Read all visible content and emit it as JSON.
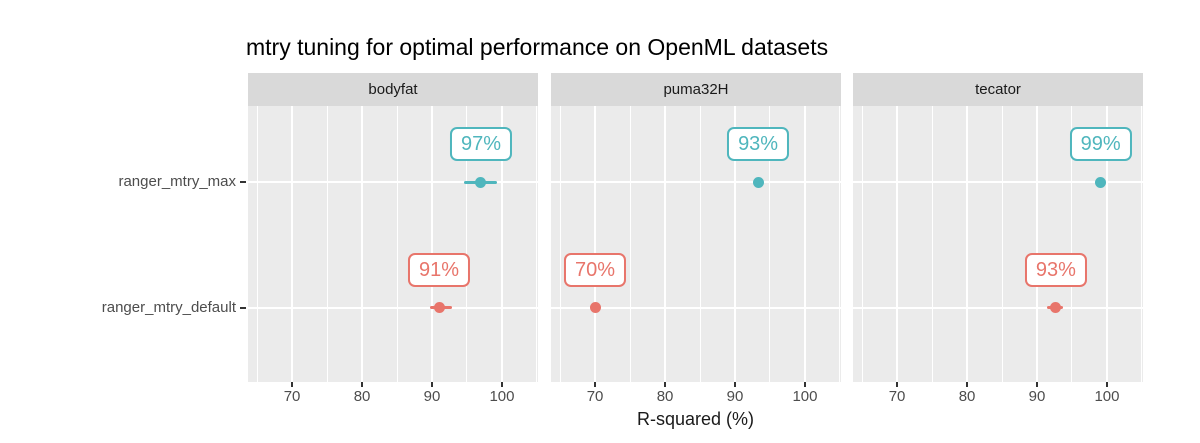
{
  "chart_data": {
    "type": "scatter",
    "title": "mtry tuning for optimal performance on OpenML datasets",
    "xlabel": "R-squared (%)",
    "ylabel": "",
    "x_ticks": [
      70,
      80,
      90,
      100
    ],
    "x_minor_ticks": [
      65,
      75,
      85,
      95,
      105
    ],
    "xlim": [
      63.7,
      105.15
    ],
    "y_categories": [
      "ranger_mtry_max",
      "ranger_mtry_default"
    ],
    "grid": "on",
    "legend": "none",
    "facets": [
      {
        "title": "bodyfat",
        "points": [
          {
            "category": "ranger_mtry_max",
            "value": 97.0,
            "label": "97%",
            "err": [
              94.6,
              99.3
            ]
          },
          {
            "category": "ranger_mtry_default",
            "value": 91.0,
            "label": "91%",
            "err": [
              89.7,
              92.9
            ]
          }
        ]
      },
      {
        "title": "puma32H",
        "points": [
          {
            "category": "ranger_mtry_max",
            "value": 93.3,
            "label": "93%",
            "err": null
          },
          {
            "category": "ranger_mtry_default",
            "value": 70.0,
            "label": "70%",
            "err": null
          }
        ]
      },
      {
        "title": "tecator",
        "points": [
          {
            "category": "ranger_mtry_max",
            "value": 99.1,
            "label": "99%",
            "err": null
          },
          {
            "category": "ranger_mtry_default",
            "value": 92.7,
            "label": "93%",
            "err": [
              91.4,
              93.7
            ]
          }
        ]
      }
    ],
    "series_colors": {
      "ranger_mtry_max": "#4FB6BD",
      "ranger_mtry_default": "#E8756B"
    },
    "style_colors": {
      "panel_background": "#EBEBEB",
      "strip_background": "#D9D9D9",
      "gridline": "#FFFFFF",
      "axis_text": "#4D4D4D",
      "tick_mark": "#333333"
    }
  }
}
